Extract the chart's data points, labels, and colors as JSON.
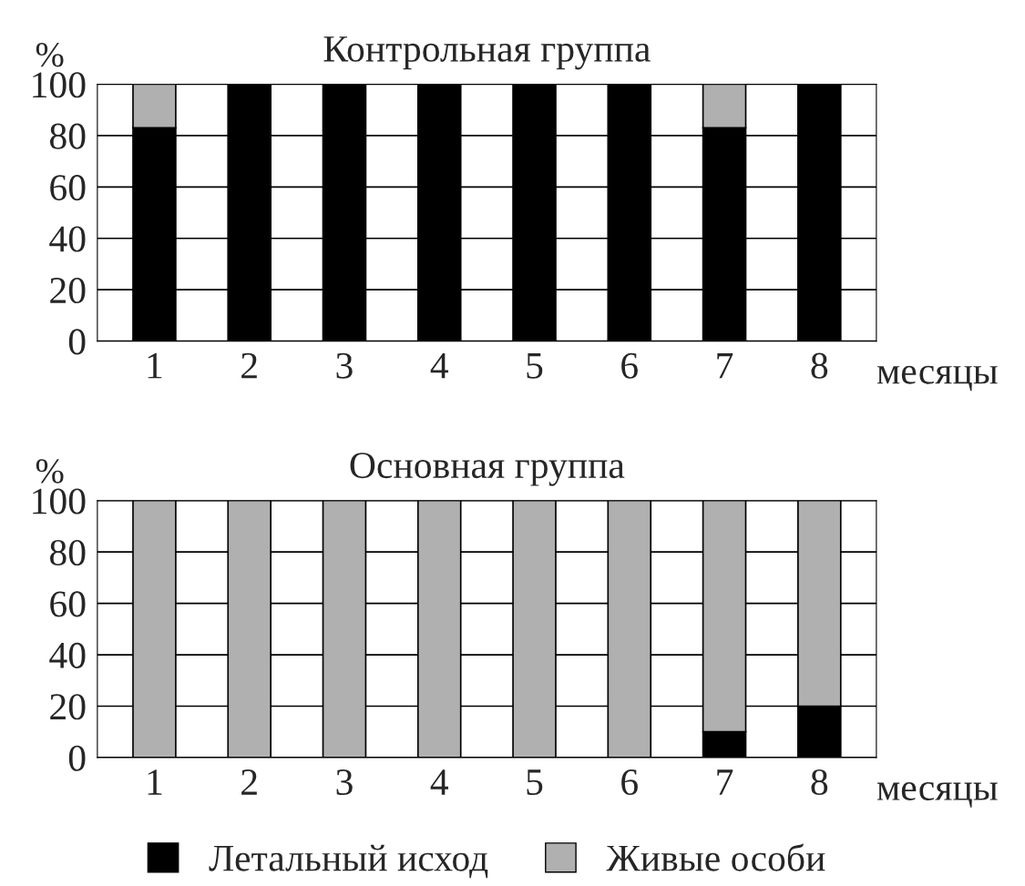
{
  "chart_data": [
    {
      "type": "bar",
      "title": "Контрольная группа",
      "ylabel": "%",
      "xlabel": "месяцы",
      "categories": [
        "1",
        "2",
        "3",
        "4",
        "5",
        "6",
        "7",
        "8"
      ],
      "stacked": true,
      "ylim": [
        0,
        100
      ],
      "yticks": [
        0,
        20,
        40,
        60,
        80,
        100
      ],
      "grid": "y",
      "legend": false,
      "series": [
        {
          "color": "#000000",
          "values": [
            83,
            100,
            100,
            100,
            100,
            100,
            83,
            100
          ]
        },
        {
          "color": "#b0b0b0",
          "values": [
            17,
            null,
            null,
            null,
            null,
            null,
            17,
            null
          ]
        }
      ]
    },
    {
      "type": "bar",
      "title": "Основная группа",
      "ylabel": "%",
      "xlabel": "месяцы",
      "categories": [
        "1",
        "2",
        "3",
        "4",
        "5",
        "6",
        "7",
        "8"
      ],
      "stacked": true,
      "ylim": [
        0,
        100
      ],
      "yticks": [
        0,
        20,
        40,
        60,
        80,
        100
      ],
      "grid": "y",
      "legend": "bottom",
      "series": [
        {
          "name": "Летальный исход",
          "color": "#000000",
          "values": [
            null,
            null,
            null,
            null,
            null,
            null,
            10,
            20
          ]
        },
        {
          "name": "Живые особи",
          "color": "#b0b0b0",
          "values": [
            100,
            100,
            100,
            100,
            100,
            100,
            90,
            80
          ]
        }
      ]
    }
  ]
}
